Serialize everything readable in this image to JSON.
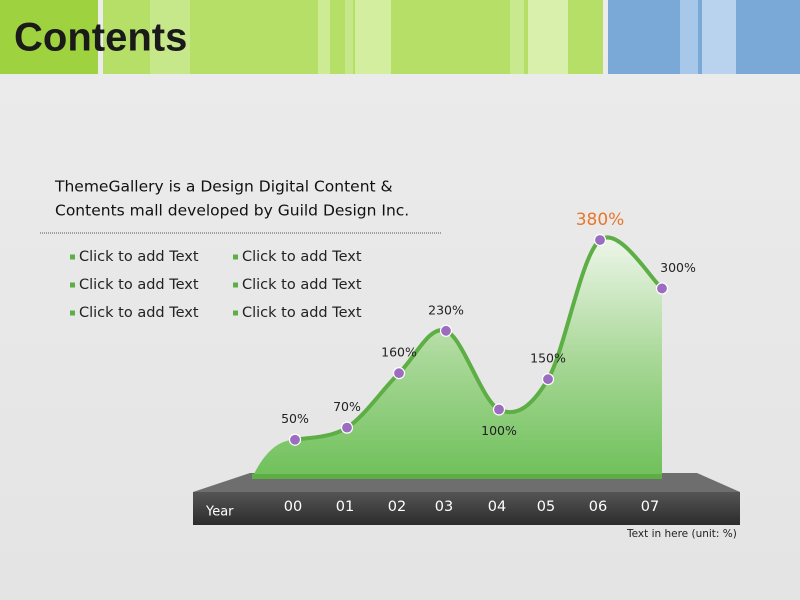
{
  "header": {
    "title": "Contents"
  },
  "description": [
    "ThemeGallery  is a Design Digital Content &",
    "Contents mall developed by Guild Design Inc."
  ],
  "bullets": [
    "Click to add Text",
    "Click to add Text",
    "Click to add Text",
    "Click to add Text",
    "Click to add Text",
    "Click to add Text"
  ],
  "chart_data": {
    "type": "area",
    "x_label": "Year",
    "categories": [
      "00",
      "01",
      "02",
      "03",
      "04",
      "05",
      "06",
      "07"
    ],
    "values": [
      50,
      70,
      160,
      230,
      100,
      150,
      380,
      300
    ],
    "value_labels": [
      "50%",
      "70%",
      "160%",
      "230%",
      "100%",
      "150%",
      "380%",
      "300%"
    ],
    "color": "#5cae45",
    "note": "Text in here  (unit: %)"
  }
}
